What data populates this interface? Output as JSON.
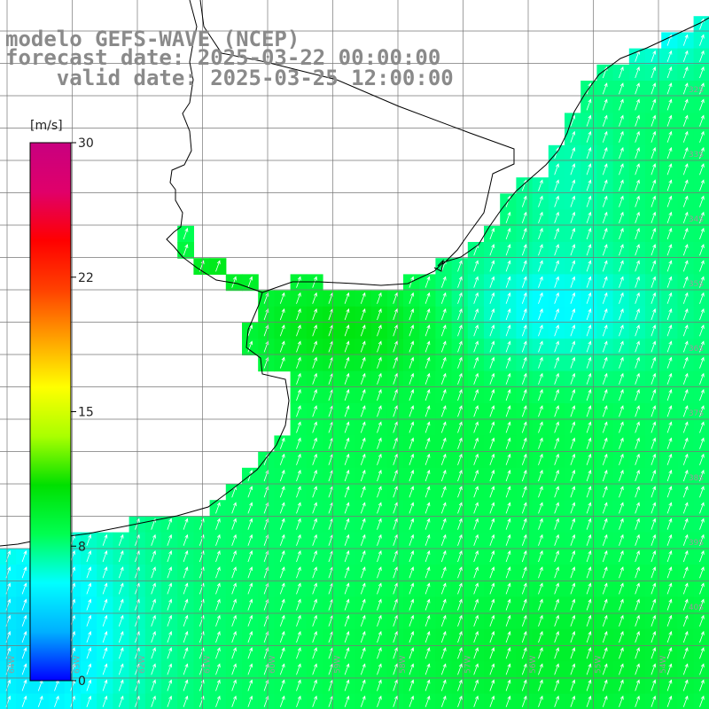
{
  "header": {
    "model": "modelo GEFS-WAVE (NCEP)",
    "forecast": "forecast date: 2025-03-22 00:00:00",
    "valid": "valid date: 2025-03-25 12:00:00"
  },
  "colorbar": {
    "unit": "[m/s]",
    "min": 0,
    "max": 30,
    "ticks": [
      "30",
      "22",
      "15",
      "8",
      "0"
    ],
    "tick_values": [
      30,
      22.5,
      15,
      7.5,
      0
    ],
    "stops": [
      "#0000ff",
      "#00b0ff",
      "#00ffff",
      "#00ff50",
      "#00e000",
      "#aaff00",
      "#ffff00",
      "#ffa000",
      "#ff4000",
      "#ff0000",
      "#e0006a",
      "#c80080"
    ]
  },
  "map": {
    "variable": "wind speed (m/s) with direction arrows",
    "lat_labels": [
      "32S",
      "33S",
      "34S",
      "35S",
      "36S",
      "37S",
      "38S",
      "39S",
      "40S"
    ],
    "lat_values": [
      -32,
      -33,
      -34,
      -35,
      -36,
      -37,
      -38,
      -39,
      -40
    ],
    "lon_labels": [
      "64W",
      "63W",
      "62W",
      "61W",
      "60W",
      "59W",
      "58W",
      "57W",
      "56W",
      "55W",
      "54W"
    ],
    "lon_values": [
      -64,
      -63,
      -62,
      -61,
      -60,
      -59,
      -58,
      -57,
      -56,
      -55,
      -54
    ],
    "land_color": "#ffffff",
    "grid_color": "#777777",
    "coast_color": "#000000",
    "arrow_color": "#ffffff",
    "prevailing_wind": "from south-southwest"
  }
}
